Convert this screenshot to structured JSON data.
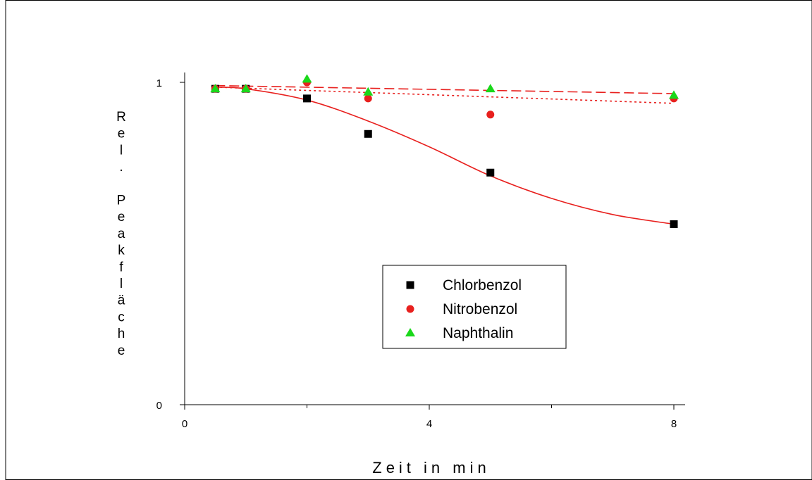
{
  "chart_data": {
    "type": "scatter",
    "xlabel": "Zeit in min",
    "ylabel": "Rel. Peakfläche",
    "xlim": [
      0,
      10
    ],
    "ylim": [
      0,
      1
    ],
    "x_ticks": [
      0,
      4,
      8
    ],
    "x_minor_ticks": [
      2,
      6
    ],
    "y_ticks": [
      0,
      1
    ],
    "x_tick_labels": [
      "0",
      "4",
      "8"
    ],
    "y_tick_labels": [
      "0",
      "1"
    ],
    "grid": false,
    "legend_position": "lower-center",
    "series": [
      {
        "name": "Chlorbenzol",
        "marker": "square",
        "color": "#000000",
        "x": [
          0.5,
          1,
          2,
          3,
          5,
          8
        ],
        "y": [
          0.98,
          0.98,
          0.95,
          0.84,
          0.72,
          0.56
        ],
        "fit": {
          "style": "solid",
          "color": "#e8201e",
          "y_at_x": [
            [
              0.5,
              0.985
            ],
            [
              1,
              0.98
            ],
            [
              2,
              0.945
            ],
            [
              3,
              0.88
            ],
            [
              4,
              0.8
            ],
            [
              5,
              0.71
            ],
            [
              6,
              0.64
            ],
            [
              7,
              0.59
            ],
            [
              8,
              0.56
            ]
          ]
        }
      },
      {
        "name": "Nitrobenzol",
        "marker": "circle",
        "color": "#e8201e",
        "x": [
          0.5,
          1,
          2,
          3,
          5,
          8
        ],
        "y": [
          0.98,
          0.98,
          1.0,
          0.95,
          0.9,
          0.95
        ],
        "fit": {
          "style": "dotted",
          "color": "#e8201e",
          "y_at_x": [
            [
              0.5,
              0.985
            ],
            [
              8,
              0.935
            ]
          ]
        }
      },
      {
        "name": "Naphthalin",
        "marker": "triangle",
        "color": "#1ad81a",
        "x": [
          0.5,
          1,
          2,
          3,
          5,
          8
        ],
        "y": [
          0.98,
          0.98,
          1.01,
          0.97,
          0.98,
          0.96
        ],
        "fit": {
          "style": "dashed",
          "color": "#e8201e",
          "y_at_x": [
            [
              0.5,
              0.99
            ],
            [
              8,
              0.965
            ]
          ]
        }
      }
    ]
  }
}
